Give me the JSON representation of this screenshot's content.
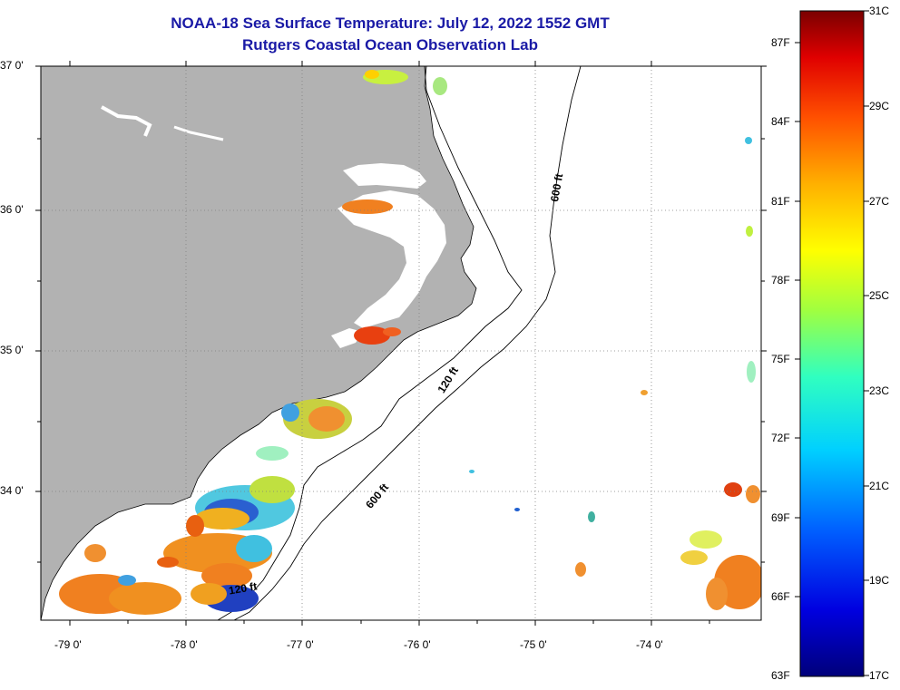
{
  "header": {
    "title": "NOAA-18 Sea Surface Temperature:  July 12, 2022 1552 GMT",
    "subtitle": "Rutgers Coastal Ocean Observation Lab"
  },
  "axes": {
    "lat_labels": [
      "37 0'",
      "36 0'",
      "35 0'",
      "34 0'"
    ],
    "lon_labels": [
      "-79 0'",
      "-78 0'",
      "-77 0'",
      "-76 0'",
      "-75 0'",
      "-74 0'"
    ]
  },
  "isobaths": {
    "label_120_a": "120 ft",
    "label_120_b": "120 ft",
    "label_600_a": "600 ft",
    "label_600_b": "600 ft"
  },
  "colorbar": {
    "fahrenheit": [
      "87F",
      "84F",
      "81F",
      "78F",
      "75F",
      "72F",
      "69F",
      "66F",
      "63F"
    ],
    "celsius": [
      "31C",
      "29C",
      "27C",
      "25C",
      "23C",
      "21C",
      "19C",
      "17C"
    ]
  },
  "colors": {
    "land": "#b2b2b2",
    "title": "#1a1aa6",
    "warm_patch": "#f08020",
    "hot_patch": "#e84010",
    "cool_patch": "#2a7fd6",
    "green_patch": "#7fd63a"
  }
}
